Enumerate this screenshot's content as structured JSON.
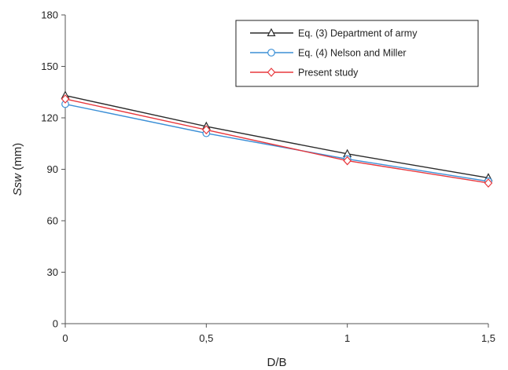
{
  "chart_data": {
    "type": "line",
    "title": "",
    "xlabel": "D/B",
    "ylabel_main": "Ssw",
    "ylabel_unit": " (mm)",
    "categories": [
      "0",
      "0,5",
      "1",
      "1,5"
    ],
    "x": [
      0,
      0.5,
      1,
      1.5
    ],
    "xlim": [
      0,
      1.5
    ],
    "ylim": [
      0,
      180
    ],
    "yticks": [
      0,
      30,
      60,
      90,
      120,
      150,
      180
    ],
    "grid": false,
    "legend_position": "top-right",
    "series": [
      {
        "name": "Eq. (3) Department of army",
        "values": [
          133,
          115,
          99,
          85
        ],
        "color": "#2b2b2b",
        "marker": "triangle"
      },
      {
        "name": "Eq. (4) Nelson and Miller",
        "values": [
          128,
          111,
          96,
          83
        ],
        "color": "#3b8fd6",
        "marker": "circle"
      },
      {
        "name": "Present study",
        "values": [
          131,
          113,
          95,
          82
        ],
        "color": "#e8383d",
        "marker": "diamond"
      }
    ]
  }
}
